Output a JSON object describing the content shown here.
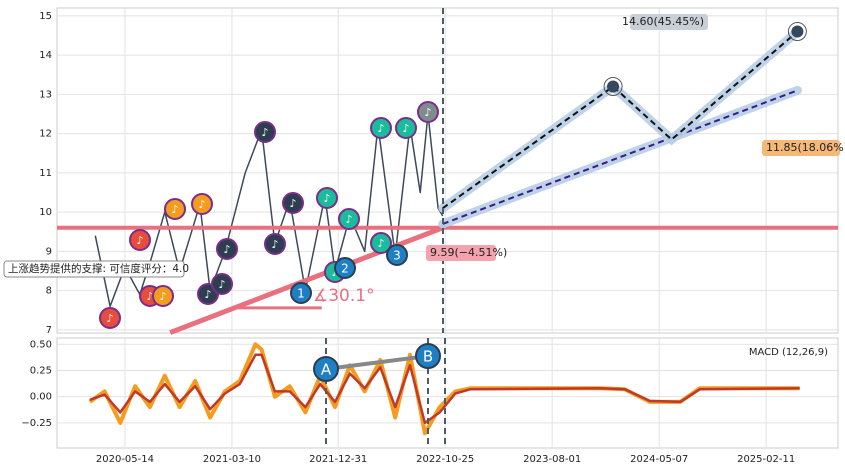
{
  "chart_data": [
    {
      "type": "line",
      "xlim": [
        0,
        100
      ],
      "ylim": [
        6.92,
        15.2
      ],
      "yticks": [
        7,
        8,
        9,
        10,
        11,
        12,
        13,
        14,
        15
      ],
      "grid": true,
      "series": [
        {
          "color": "#3d4a5c",
          "width": 1.5,
          "dashed": false,
          "x": [
            4.9,
            6.8,
            8.7,
            10.6,
            11.9,
            13.8,
            15.7,
            18.3,
            19.6,
            21.5,
            24.1,
            26.2,
            27.9,
            29.8,
            31.8,
            34.3,
            35.6,
            37.5,
            39.4,
            41.1,
            43.3,
            45.2,
            46.5,
            47.5,
            48.8,
            49.4
          ],
          "values": [
            9.4,
            7.6,
            8.6,
            7.9,
            8.7,
            10.0,
            8.5,
            10.2,
            8.0,
            9.0,
            11.0,
            12.1,
            9.2,
            10.3,
            8.0,
            10.4,
            8.5,
            9.9,
            9.0,
            12.2,
            8.9,
            12.2,
            10.5,
            12.5,
            10.1,
            9.9
          ]
        },
        {
          "color": "#e8707f",
          "width": 4,
          "dashed": false,
          "x": [
            0,
            100
          ],
          "values": [
            9.6,
            9.6
          ]
        },
        {
          "color": "#e8707f",
          "width": 5,
          "dashed": false,
          "x": [
            14.5,
            49.4
          ],
          "values": [
            6.93,
            9.6
          ]
        },
        {
          "color": "#e8707f",
          "width": 3,
          "dashed": false,
          "x": [
            22.8,
            33.9
          ],
          "values": [
            7.56,
            7.56
          ]
        },
        {
          "color": "#3b1a8a",
          "width": 2,
          "dashed": true,
          "glow": "#b7cde6",
          "x": [
            49.4,
            94.8
          ],
          "values": [
            9.7,
            13.1
          ]
        },
        {
          "color": "#111111",
          "width": 2,
          "dashed": true,
          "glow": "#b7cde6",
          "x": [
            49.4,
            71.2,
            78.7,
            94.8
          ],
          "values": [
            10.1,
            13.2,
            11.85,
            14.6
          ]
        }
      ],
      "annotations": [
        "14.60(45.45%)",
        "11.85(18.06%)",
        "9.59(−4.51%)",
        "上涨趋势提供的支撑: 可信度评分：4.0",
        "∡30.1°",
        "1",
        "2",
        "3"
      ]
    },
    {
      "type": "line",
      "xlim": [
        0,
        100
      ],
      "ylim": [
        -0.49,
        0.56
      ],
      "yticks": [
        {
          "value": 0.5,
          "label": "0.50"
        },
        {
          "value": 0.25,
          "label": "0.25"
        },
        {
          "value": 0,
          "label": "0.00"
        },
        {
          "value": -0.25,
          "label": "−0.25"
        }
      ],
      "xticks": [
        {
          "value": 8.7,
          "label": "2020-05-14"
        },
        {
          "value": 22.4,
          "label": "2021-03-10"
        },
        {
          "value": 36.0,
          "label": "2021-12-31"
        },
        {
          "value": 49.7,
          "label": "2022-10-25"
        },
        {
          "value": 63.4,
          "label": "2023-08-01"
        },
        {
          "value": 77.1,
          "label": "2024-05-07"
        },
        {
          "value": 90.8,
          "label": "2025-02-11"
        }
      ],
      "grid": true,
      "series": [
        {
          "color": "#f39c1f",
          "width": 4,
          "dashed": false,
          "x": [
            4.2,
            6.1,
            8.1,
            10.0,
            11.9,
            13.8,
            15.7,
            17.7,
            19.6,
            21.5,
            23.4,
            25.4,
            26.2,
            27.9,
            29.8,
            31.8,
            33.7,
            35.6,
            37.5,
            39.4,
            41.4,
            43.3,
            45.2,
            47.1,
            49.0,
            51.0,
            52.9,
            69.5,
            72.7,
            75.9,
            79.8,
            82.3,
            95.1
          ],
          "values": [
            -0.05,
            0.05,
            -0.25,
            0.1,
            -0.1,
            0.2,
            -0.1,
            0.15,
            -0.2,
            0.05,
            0.15,
            0.5,
            0.45,
            0.0,
            0.1,
            -0.15,
            0.2,
            -0.1,
            0.3,
            0.05,
            0.35,
            -0.2,
            0.4,
            -0.35,
            -0.1,
            0.05,
            0.08,
            0.08,
            0.07,
            -0.05,
            -0.05,
            0.08,
            0.08
          ]
        },
        {
          "color": "#c0392b",
          "width": 2.5,
          "dashed": false,
          "x": [
            4.2,
            6.1,
            8.1,
            10.0,
            11.9,
            13.8,
            15.7,
            17.7,
            19.6,
            21.5,
            23.4,
            25.4,
            26.2,
            27.9,
            29.8,
            31.8,
            33.7,
            35.6,
            37.5,
            39.4,
            41.4,
            43.3,
            45.2,
            47.1,
            49.0,
            51.0,
            52.9,
            69.5,
            72.7,
            75.9,
            79.8,
            82.3,
            95.1
          ],
          "values": [
            -0.03,
            0.02,
            -0.15,
            0.05,
            -0.05,
            0.12,
            -0.05,
            0.1,
            -0.12,
            0.03,
            0.12,
            0.4,
            0.4,
            0.05,
            0.05,
            -0.1,
            0.12,
            -0.05,
            0.22,
            0.08,
            0.28,
            -0.1,
            0.3,
            -0.25,
            -0.15,
            0.03,
            0.07,
            0.08,
            0.07,
            -0.04,
            -0.05,
            0.07,
            0.08
          ]
        }
      ],
      "annotations": [
        "MACD (12,26,9)",
        "A",
        "B"
      ]
    }
  ]
}
